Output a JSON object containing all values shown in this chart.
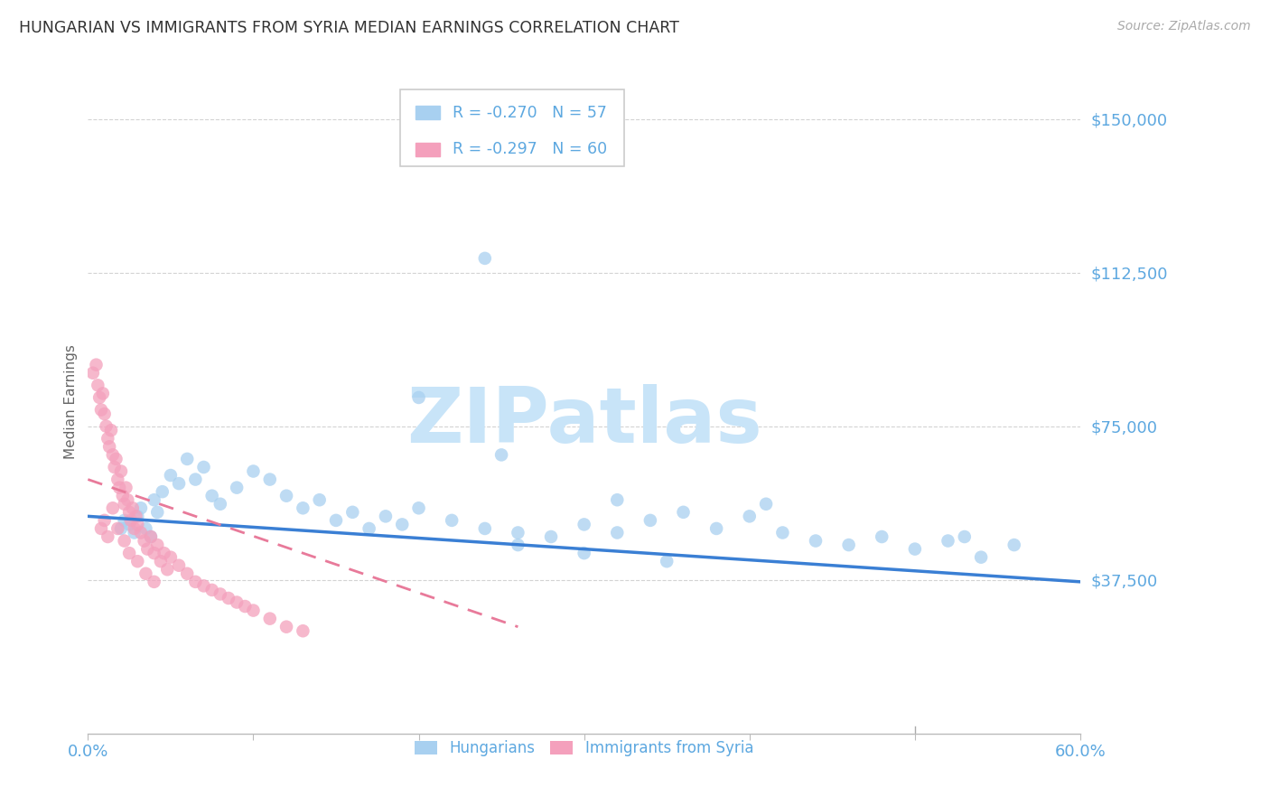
{
  "title": "HUNGARIAN VS IMMIGRANTS FROM SYRIA MEDIAN EARNINGS CORRELATION CHART",
  "source": "Source: ZipAtlas.com",
  "ylabel": "Median Earnings",
  "yticks": [
    37500,
    75000,
    112500,
    150000
  ],
  "ytick_labels": [
    "$37,500",
    "$75,000",
    "$112,500",
    "$150,000"
  ],
  "ylim": [
    0,
    162000
  ],
  "xlim": [
    0.0,
    0.6
  ],
  "watermark": "ZIPatlas",
  "legend_r_hungarian": "-0.270",
  "legend_n_hungarian": "57",
  "legend_r_syria": "-0.297",
  "legend_n_syria": "60",
  "hungarian_scatter_x": [
    0.02,
    0.022,
    0.025,
    0.028,
    0.03,
    0.032,
    0.035,
    0.038,
    0.04,
    0.042,
    0.045,
    0.05,
    0.055,
    0.06,
    0.065,
    0.07,
    0.075,
    0.08,
    0.09,
    0.1,
    0.11,
    0.12,
    0.13,
    0.14,
    0.15,
    0.16,
    0.17,
    0.18,
    0.19,
    0.2,
    0.22,
    0.24,
    0.26,
    0.28,
    0.3,
    0.32,
    0.34,
    0.36,
    0.38,
    0.4,
    0.42,
    0.44,
    0.46,
    0.48,
    0.5,
    0.52,
    0.54,
    0.56,
    0.24,
    0.2,
    0.26,
    0.3,
    0.35,
    0.25,
    0.32,
    0.41,
    0.53
  ],
  "hungarian_scatter_y": [
    50000,
    52000,
    51000,
    49000,
    53000,
    55000,
    50000,
    48000,
    57000,
    54000,
    59000,
    63000,
    61000,
    67000,
    62000,
    65000,
    58000,
    56000,
    60000,
    64000,
    62000,
    58000,
    55000,
    57000,
    52000,
    54000,
    50000,
    53000,
    51000,
    55000,
    52000,
    50000,
    49000,
    48000,
    51000,
    49000,
    52000,
    54000,
    50000,
    53000,
    49000,
    47000,
    46000,
    48000,
    45000,
    47000,
    43000,
    46000,
    116000,
    82000,
    46000,
    44000,
    42000,
    68000,
    57000,
    56000,
    48000
  ],
  "syria_scatter_x": [
    0.003,
    0.005,
    0.006,
    0.007,
    0.008,
    0.009,
    0.01,
    0.011,
    0.012,
    0.013,
    0.014,
    0.015,
    0.016,
    0.017,
    0.018,
    0.019,
    0.02,
    0.021,
    0.022,
    0.023,
    0.024,
    0.025,
    0.026,
    0.027,
    0.028,
    0.029,
    0.03,
    0.032,
    0.034,
    0.036,
    0.038,
    0.04,
    0.042,
    0.044,
    0.046,
    0.048,
    0.05,
    0.055,
    0.06,
    0.065,
    0.07,
    0.075,
    0.08,
    0.085,
    0.09,
    0.095,
    0.1,
    0.11,
    0.12,
    0.13,
    0.008,
    0.01,
    0.012,
    0.015,
    0.018,
    0.022,
    0.025,
    0.03,
    0.035,
    0.04
  ],
  "syria_scatter_y": [
    88000,
    90000,
    85000,
    82000,
    79000,
    83000,
    78000,
    75000,
    72000,
    70000,
    74000,
    68000,
    65000,
    67000,
    62000,
    60000,
    64000,
    58000,
    56000,
    60000,
    57000,
    54000,
    52000,
    55000,
    50000,
    53000,
    51000,
    49000,
    47000,
    45000,
    48000,
    44000,
    46000,
    42000,
    44000,
    40000,
    43000,
    41000,
    39000,
    37000,
    36000,
    35000,
    34000,
    33000,
    32000,
    31000,
    30000,
    28000,
    26000,
    25000,
    50000,
    52000,
    48000,
    55000,
    50000,
    47000,
    44000,
    42000,
    39000,
    37000
  ],
  "hungarian_trend_x": [
    0.0,
    0.6
  ],
  "hungarian_trend_y": [
    53000,
    37000
  ],
  "syria_trend_x": [
    0.0,
    0.26
  ],
  "syria_trend_y": [
    62000,
    26000
  ],
  "colors": {
    "hungarian_dot": "#A8D0F0",
    "syrian_dot": "#F4A0BC",
    "hungarian_line": "#3A7FD4",
    "syrian_line": "#E87A9A",
    "tick_label": "#5DA8E0",
    "grid": "#C8C8C8",
    "title": "#333333",
    "axis_label": "#666666",
    "watermark": "#C8E4F8",
    "source": "#AAAAAA",
    "legend_border": "#CCCCCC",
    "legend_text": "#5DA8E0"
  },
  "bottom_legend": [
    "Hungarians",
    "Immigrants from Syria"
  ]
}
